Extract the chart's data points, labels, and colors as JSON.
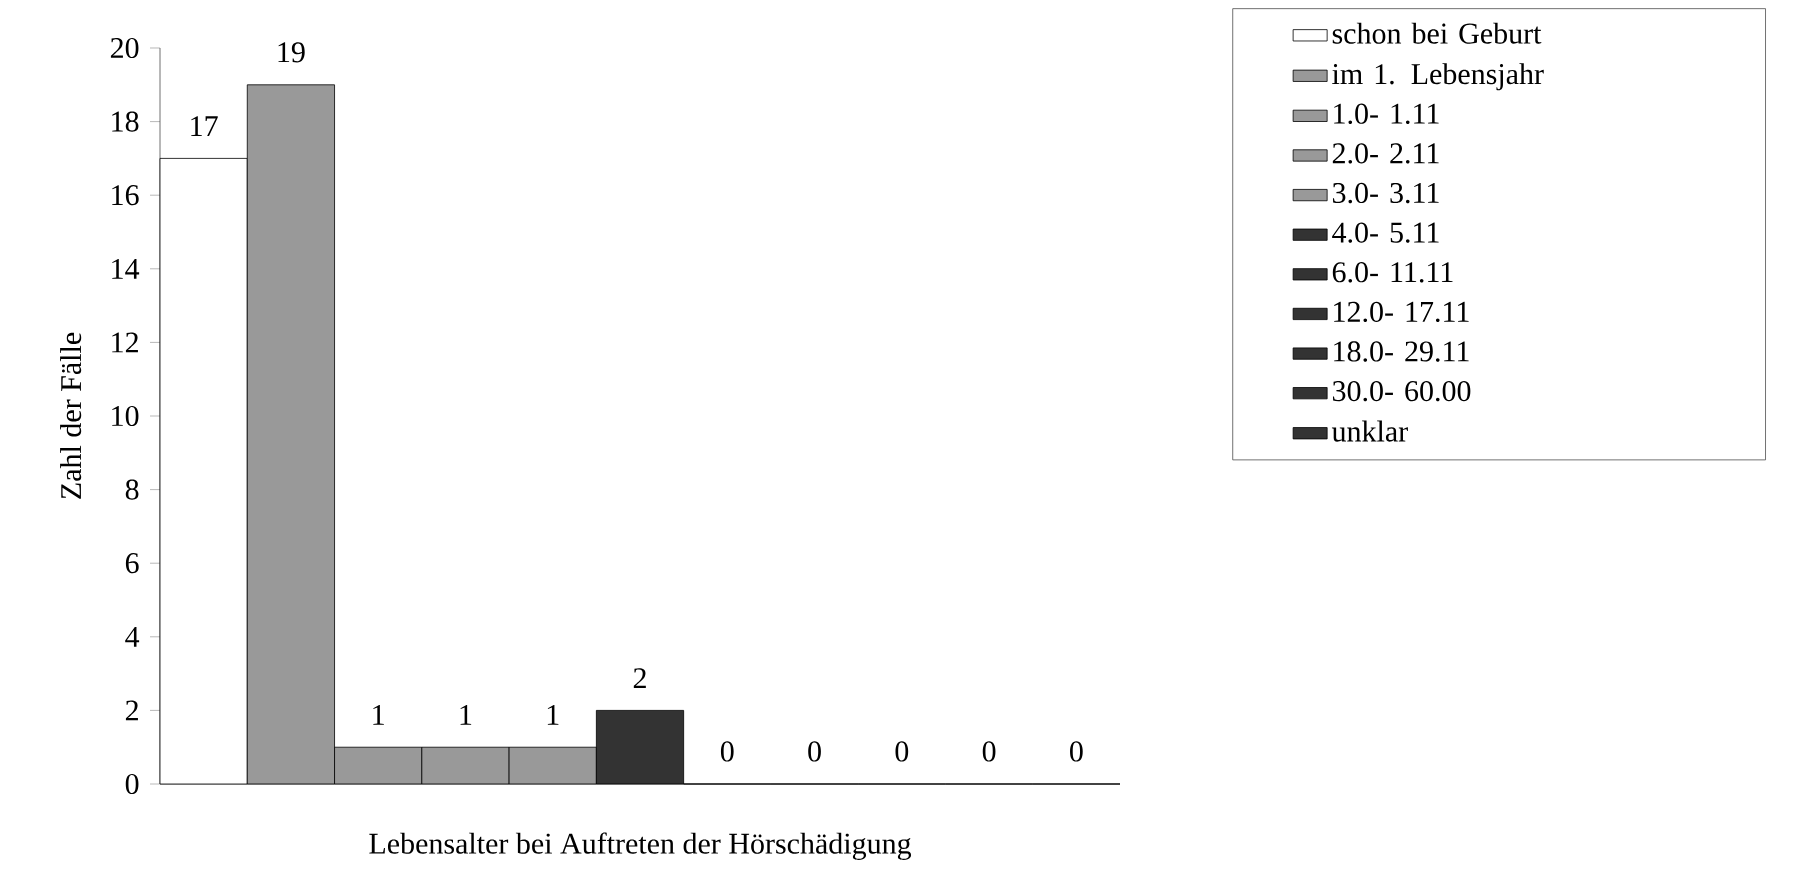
{
  "chart_data": {
    "type": "bar",
    "xlabel": "Lebensalter bei Auftreten der Hörschädigung",
    "ylabel": "Zahl der Fälle",
    "categories": [
      null,
      null,
      null,
      null,
      null,
      null,
      null,
      null,
      null,
      null,
      null
    ],
    "series": [
      {
        "name": "schon bei Geburt",
        "color": "#ffffff",
        "values": [
          17,
          null,
          null,
          null,
          null,
          null,
          null,
          null,
          null,
          null,
          null
        ]
      },
      {
        "name": "im 1. Lebensjahr",
        "color": "#999999",
        "values": [
          null,
          19,
          null,
          null,
          null,
          null,
          null,
          null,
          null,
          null,
          null
        ]
      },
      {
        "name": "1.0- 1.11",
        "color": "#999999",
        "values": [
          null,
          null,
          1,
          null,
          null,
          null,
          null,
          null,
          null,
          null,
          null
        ]
      },
      {
        "name": "2.0- 2.11",
        "color": "#999999",
        "values": [
          null,
          null,
          null,
          1,
          null,
          null,
          null,
          null,
          null,
          null,
          null
        ]
      },
      {
        "name": "3.0- 3.11",
        "color": "#999999",
        "values": [
          null,
          null,
          null,
          null,
          1,
          null,
          null,
          null,
          null,
          null,
          null
        ]
      },
      {
        "name": "4.0- 5.11",
        "color": "#333333",
        "values": [
          null,
          null,
          null,
          null,
          null,
          2,
          null,
          null,
          null,
          null,
          null
        ]
      },
      {
        "name": "6.0- 11.11",
        "color": "#333333",
        "values": [
          null,
          null,
          null,
          null,
          null,
          null,
          0,
          null,
          null,
          null,
          null
        ]
      },
      {
        "name": "12.0- 17.11",
        "color": "#333333",
        "values": [
          null,
          null,
          null,
          null,
          null,
          null,
          null,
          0,
          null,
          null,
          null
        ]
      },
      {
        "name": "18.0- 29.11",
        "color": "#333333",
        "values": [
          null,
          null,
          null,
          null,
          null,
          null,
          null,
          null,
          0,
          null,
          null
        ]
      },
      {
        "name": "30.0- 60.00",
        "color": "#333333",
        "values": [
          null,
          null,
          null,
          null,
          null,
          null,
          null,
          null,
          null,
          0,
          null
        ]
      },
      {
        "name": "unklar",
        "color": "#333333",
        "values": [
          null,
          null,
          null,
          null,
          null,
          null,
          null,
          null,
          null,
          null,
          0
        ]
      }
    ],
    "ylim": [
      0,
      20
    ],
    "yticks": [
      0,
      2,
      4,
      6,
      8,
      10,
      12,
      14,
      16,
      18,
      20
    ],
    "data_labels": true,
    "legend": "right",
    "tick_labels": "y"
  }
}
